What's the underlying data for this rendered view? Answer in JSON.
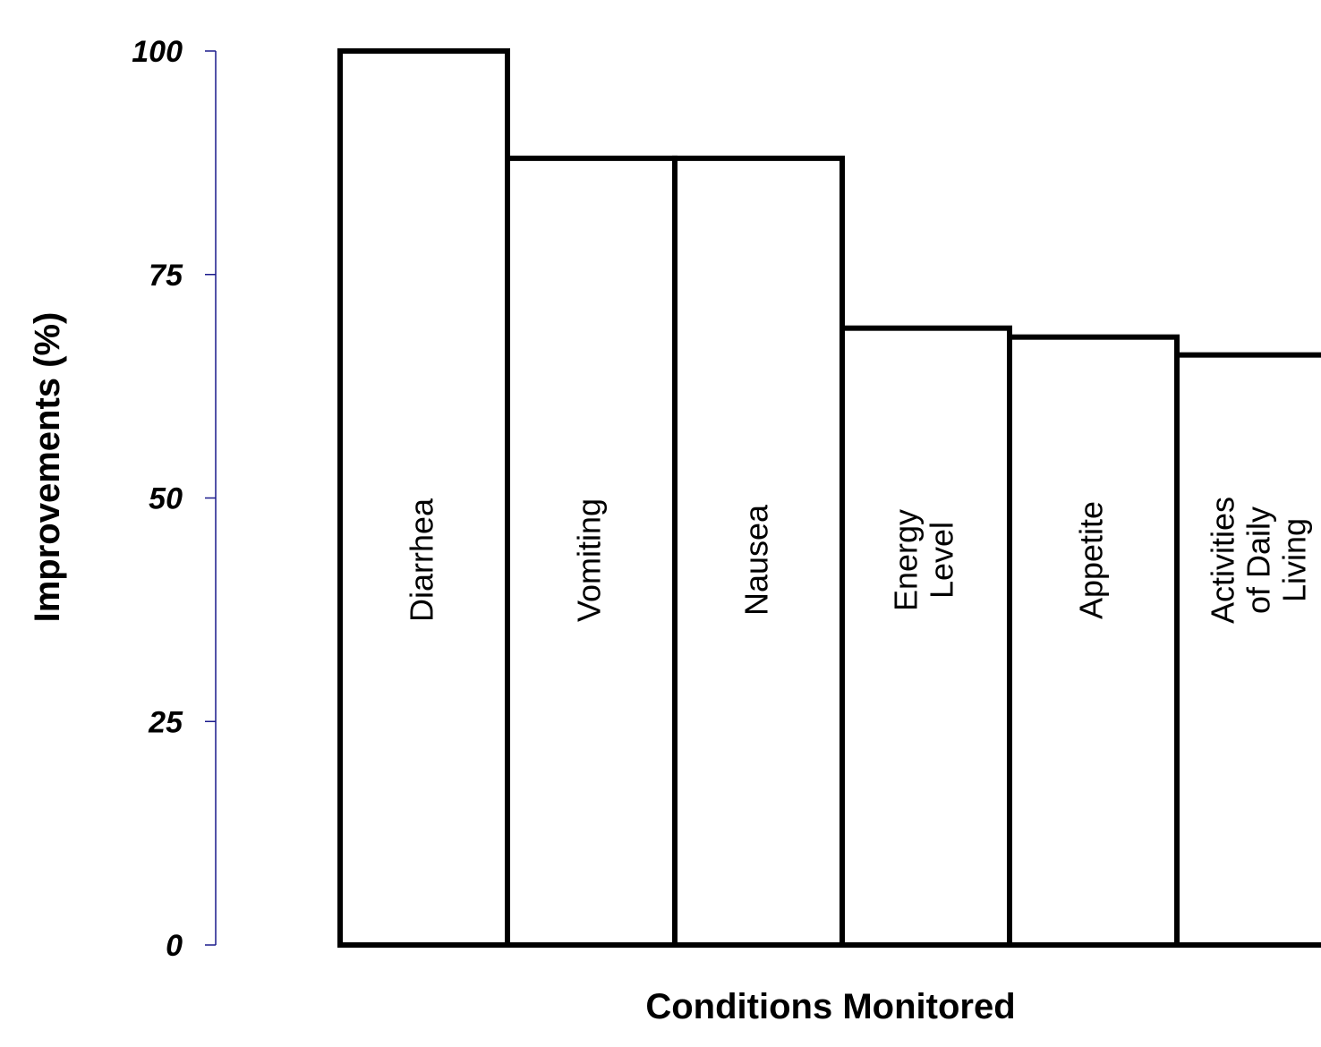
{
  "chart_data": {
    "type": "bar",
    "title": "",
    "xlabel": "Conditions Monitored",
    "ylabel": "Improvements (%)",
    "ylim": [
      0,
      100
    ],
    "yticks": [
      "0",
      "25",
      "50",
      "75",
      "100"
    ],
    "categories": [
      [
        "Diarrhea"
      ],
      [
        "Vomiting"
      ],
      [
        "Nausea"
      ],
      [
        "Energy",
        "Level"
      ],
      [
        "Appetite"
      ],
      [
        "Activities",
        "of Daily",
        "Living"
      ]
    ],
    "values": [
      100,
      88,
      88,
      69,
      68,
      66
    ],
    "grid": false,
    "legend": "none",
    "axis_color": "#1a1a8c",
    "bar_fill": "#ffffff",
    "bar_stroke": "#000000"
  }
}
